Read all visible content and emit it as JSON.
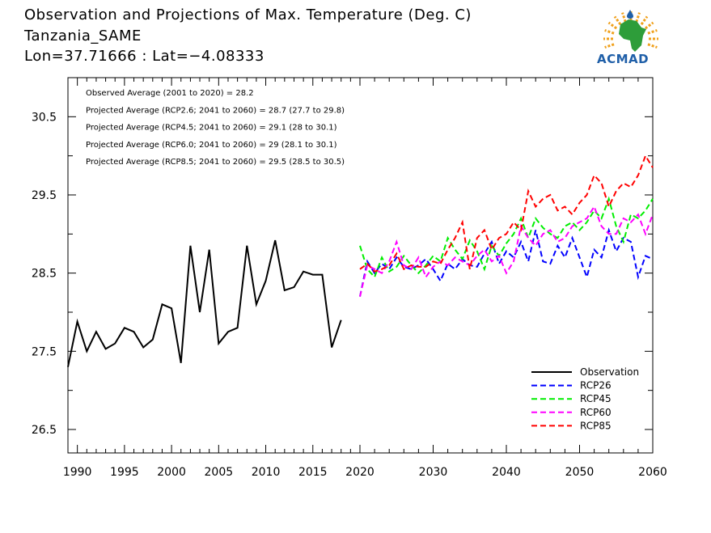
{
  "header": {
    "title": "Observation and Projections of Max. Temperature (Deg. C)",
    "location": "Tanzania_SAME",
    "coords": "Lon=37.71666 : Lat=−4.08333"
  },
  "logo": {
    "text": "ACMAD",
    "colors": {
      "africa": "#2e9d3a",
      "rays": "#f0a11d",
      "text": "#1f5fa8"
    }
  },
  "annotations": [
    "Observed Average (2001 to 2020) = 28.2",
    "Projected Average (RCP2.6; 2041 to 2060) = 28.7 (27.7 to 29.8)",
    "Projected Average (RCP4.5; 2041 to 2060) = 29.1 (28 to 30.1)",
    "Projected Average (RCP6.0; 2041 to 2060) = 29 (28.1 to 30.1)",
    "Projected Average (RCP8.5; 2041 to 2060) = 29.5 (28.5 to 30.5)"
  ],
  "chart_data": {
    "type": "line",
    "title": "Observation and Projections of Max. Temperature (Deg. C)",
    "xlim": [
      1989,
      2060
    ],
    "ylim": [
      26.2,
      31.0
    ],
    "x_ticks_major": [
      1990,
      1995,
      2000,
      2005,
      2010,
      2015,
      2020,
      2030,
      2040,
      2050,
      2060
    ],
    "x_tick_labels": [
      "1990",
      "1995",
      "2000",
      "2005",
      "2010",
      "2015",
      "2020",
      "2030",
      "2040",
      "2050",
      "2060"
    ],
    "y_ticks": [
      26.5,
      27.5,
      28.5,
      29.5,
      30.5
    ],
    "y_tick_labels": [
      "26.5",
      "27.5",
      "28.5",
      "29.5",
      "30.5"
    ],
    "legend_position": "bottom-right",
    "series": [
      {
        "name": "Observation",
        "color": "#000000",
        "dashed": false,
        "x": [
          1989,
          1990,
          1991,
          1992,
          1993,
          1994,
          1995,
          1996,
          1997,
          1998,
          1999,
          2000,
          2001,
          2002,
          2003,
          2004,
          2005,
          2006,
          2007,
          2008,
          2009,
          2010,
          2011,
          2012,
          2013,
          2014,
          2015,
          2016,
          2017,
          2018,
          2019
        ],
        "y": [
          27.3,
          27.88,
          27.5,
          27.75,
          27.53,
          27.6,
          27.8,
          27.75,
          27.55,
          27.65,
          28.1,
          28.05,
          27.35,
          28.85,
          28.0,
          28.8,
          27.6,
          27.75,
          27.8,
          28.85,
          28.1,
          28.4,
          28.92,
          28.28,
          28.32,
          28.52,
          28.48,
          28.48,
          27.55,
          27.9,
          null
        ]
      },
      {
        "name": "RCP26",
        "color": "#0000ff",
        "dashed": true,
        "x": [
          2020,
          2021,
          2022,
          2023,
          2024,
          2025,
          2026,
          2027,
          2028,
          2029,
          2030,
          2031,
          2032,
          2033,
          2034,
          2035,
          2036,
          2037,
          2038,
          2039,
          2040,
          2041,
          2042,
          2043,
          2044,
          2045,
          2046,
          2047,
          2048,
          2049,
          2050,
          2051,
          2052,
          2053,
          2054,
          2055,
          2056,
          2057,
          2058,
          2059,
          2060
        ],
        "y": [
          28.2,
          28.65,
          28.5,
          28.62,
          28.55,
          28.7,
          28.58,
          28.55,
          28.6,
          28.68,
          28.55,
          28.4,
          28.62,
          28.55,
          28.68,
          28.6,
          28.58,
          28.75,
          28.9,
          28.62,
          28.78,
          28.7,
          28.9,
          28.65,
          29.05,
          28.65,
          28.62,
          28.85,
          28.7,
          28.95,
          28.7,
          28.45,
          28.8,
          28.7,
          29.05,
          28.78,
          28.95,
          28.9,
          28.45,
          28.72,
          28.68
        ]
      },
      {
        "name": "RCP45",
        "color": "#00ee00",
        "dashed": true,
        "x": [
          2020,
          2021,
          2022,
          2023,
          2024,
          2025,
          2026,
          2027,
          2028,
          2029,
          2030,
          2031,
          2032,
          2033,
          2034,
          2035,
          2036,
          2037,
          2038,
          2039,
          2040,
          2041,
          2042,
          2043,
          2044,
          2045,
          2046,
          2047,
          2048,
          2049,
          2050,
          2051,
          2052,
          2053,
          2054,
          2055,
          2056,
          2057,
          2058,
          2059,
          2060
        ],
        "y": [
          28.85,
          28.55,
          28.45,
          28.7,
          28.52,
          28.58,
          28.72,
          28.6,
          28.5,
          28.6,
          28.72,
          28.65,
          28.95,
          28.8,
          28.68,
          28.92,
          28.78,
          28.55,
          28.85,
          28.72,
          28.88,
          29.0,
          29.2,
          28.95,
          29.2,
          29.08,
          29.0,
          28.95,
          29.1,
          29.15,
          29.05,
          29.15,
          29.3,
          29.2,
          29.45,
          29.1,
          28.9,
          29.25,
          29.2,
          29.3,
          29.45
        ]
      },
      {
        "name": "RCP60",
        "color": "#ff00ff",
        "dashed": true,
        "x": [
          2020,
          2021,
          2022,
          2023,
          2024,
          2025,
          2026,
          2027,
          2028,
          2029,
          2030,
          2031,
          2032,
          2033,
          2034,
          2035,
          2036,
          2037,
          2038,
          2039,
          2040,
          2041,
          2042,
          2043,
          2044,
          2045,
          2046,
          2047,
          2048,
          2049,
          2050,
          2051,
          2052,
          2053,
          2054,
          2055,
          2056,
          2057,
          2058,
          2059,
          2060
        ],
        "y": [
          28.2,
          28.6,
          28.55,
          28.5,
          28.65,
          28.9,
          28.6,
          28.55,
          28.7,
          28.45,
          28.58,
          28.65,
          28.6,
          28.7,
          28.65,
          28.6,
          28.72,
          28.8,
          28.65,
          28.72,
          28.5,
          28.65,
          29.1,
          28.95,
          28.85,
          29.0,
          29.05,
          28.9,
          28.95,
          29.1,
          29.15,
          29.2,
          29.35,
          29.1,
          29.0,
          29.0,
          29.2,
          29.15,
          29.25,
          29.0,
          29.25
        ]
      },
      {
        "name": "RCP85",
        "color": "#ff0000",
        "dashed": true,
        "x": [
          2020,
          2021,
          2022,
          2023,
          2024,
          2025,
          2026,
          2027,
          2028,
          2029,
          2030,
          2031,
          2032,
          2033,
          2034,
          2035,
          2036,
          2037,
          2038,
          2039,
          2040,
          2041,
          2042,
          2043,
          2044,
          2045,
          2046,
          2047,
          2048,
          2049,
          2050,
          2051,
          2052,
          2053,
          2054,
          2055,
          2056,
          2057,
          2058,
          2059,
          2060
        ],
        "y": [
          28.55,
          28.62,
          28.52,
          28.55,
          28.6,
          28.75,
          28.55,
          28.6,
          28.58,
          28.58,
          28.65,
          28.62,
          28.8,
          28.95,
          29.15,
          28.55,
          28.95,
          29.05,
          28.8,
          28.95,
          29.0,
          29.15,
          29.05,
          29.55,
          29.35,
          29.45,
          29.5,
          29.3,
          29.35,
          29.25,
          29.4,
          29.5,
          29.75,
          29.65,
          29.35,
          29.55,
          29.65,
          29.6,
          29.75,
          30.0,
          29.85
        ]
      }
    ]
  }
}
